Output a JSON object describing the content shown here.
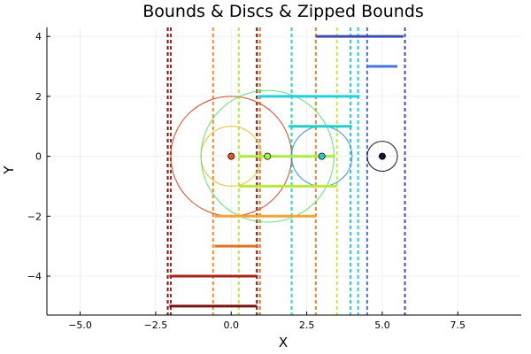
{
  "chart_data": {
    "type": "scatter",
    "title": "Bounds & Discs & Zipped Bounds",
    "xlabel": "X",
    "ylabel": "Y",
    "xlim": [
      -6.1,
      9.6
    ],
    "ylim": [
      -5.3,
      4.3
    ],
    "xticks": [
      -5.0,
      -2.5,
      0.0,
      2.5,
      5.0,
      7.5
    ],
    "xtick_labels": [
      "−5.0",
      "−2.5",
      "0.0",
      "2.5",
      "5.0",
      "7.5"
    ],
    "yticks": [
      -4,
      -2,
      0,
      2,
      4
    ],
    "ytick_labels": [
      "−4",
      "−2",
      "0",
      "2",
      "4"
    ],
    "grid": true,
    "legend": "none",
    "discs": [
      {
        "cx": 0.0,
        "cy": 0.0,
        "r": 2.0,
        "color": "#d9431c"
      },
      {
        "cx": 0.0,
        "cy": 0.0,
        "r": 1.0,
        "color": "#e8c02a"
      },
      {
        "cx": 1.2,
        "cy": 0.0,
        "r": 2.2,
        "color": "#5be56e"
      },
      {
        "cx": 3.0,
        "cy": 0.0,
        "r": 1.0,
        "color": "#3a96df"
      },
      {
        "cx": 5.0,
        "cy": 0.0,
        "r": 0.5,
        "color": "#1f0f33"
      }
    ],
    "centers": [
      {
        "x": 0.0,
        "y": 0.0,
        "color": "#e1561f"
      },
      {
        "x": 1.2,
        "y": 0.0,
        "color": "#a8f03c"
      },
      {
        "x": 3.0,
        "y": 0.0,
        "color": "#2cc4d6"
      },
      {
        "x": 5.0,
        "y": 0.0,
        "color": "#1f0f33"
      }
    ],
    "bounds": [
      {
        "xmin": 0.25,
        "xmax": 3.4,
        "y": 0.0,
        "color": "#a8f03c"
      },
      {
        "xmin": 0.9,
        "xmax": 4.25,
        "y": 2.0,
        "color": "#1fcfe0"
      },
      {
        "xmin": 1.9,
        "xmax": 4.0,
        "y": 1.0,
        "color": "#22cfc8"
      },
      {
        "xmin": 0.25,
        "xmax": 3.5,
        "y": -1.0,
        "color": "#b9ea35"
      },
      {
        "xmin": -0.55,
        "xmax": 2.8,
        "y": -2.0,
        "color": "#f5a236"
      },
      {
        "xmin": -0.55,
        "xmax": 0.9,
        "y": -3.0,
        "color": "#e57220"
      },
      {
        "xmin": -2.05,
        "xmax": 0.85,
        "y": -4.0,
        "color": "#a8231a"
      },
      {
        "xmin": -2.05,
        "xmax": 0.85,
        "y": -5.0,
        "color": "#7a1010"
      },
      {
        "xmin": 2.8,
        "xmax": 5.7,
        "y": 4.0,
        "color": "#3f4cb8"
      },
      {
        "xmin": 4.5,
        "xmax": 5.5,
        "y": 3.0,
        "color": "#4a72e0"
      }
    ],
    "vlines": [
      {
        "x": -2.1,
        "color": "#7a1010"
      },
      {
        "x": -2.0,
        "color": "#a8231a"
      },
      {
        "x": -0.6,
        "color": "#f08a2a"
      },
      {
        "x": 0.25,
        "color": "#b9ea35"
      },
      {
        "x": 0.85,
        "color": "#7a1010"
      },
      {
        "x": 0.95,
        "color": "#e57220"
      },
      {
        "x": 2.0,
        "color": "#2cd8b4"
      },
      {
        "x": 2.8,
        "color": "#d98a3a"
      },
      {
        "x": 3.5,
        "color": "#c7ea38"
      },
      {
        "x": 3.95,
        "color": "#22cfc8"
      },
      {
        "x": 4.2,
        "color": "#1fcfe0"
      },
      {
        "x": 4.5,
        "color": "#4a72e0"
      },
      {
        "x": 5.75,
        "color": "#3f4cb8"
      }
    ]
  }
}
